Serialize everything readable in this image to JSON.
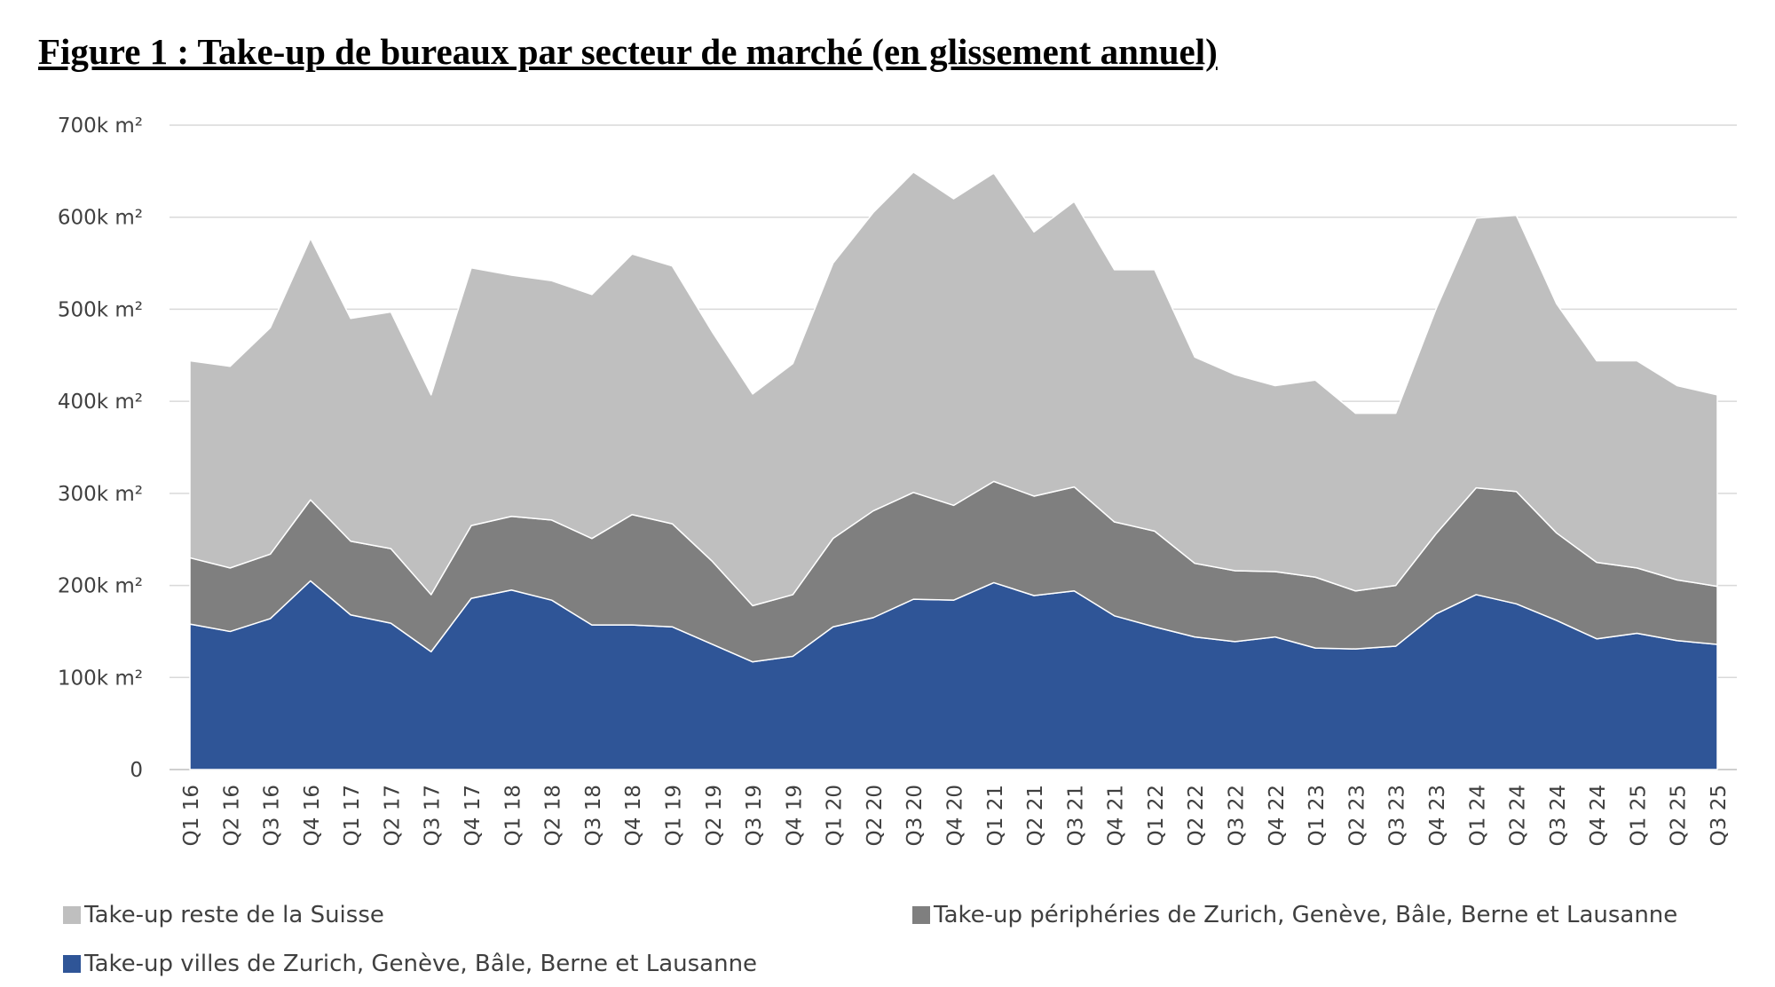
{
  "title": "Figure 1 : Take-up de bureaux par secteur de marché (en glissement annuel)",
  "chart_data": {
    "type": "area",
    "stacked": true,
    "title": "Figure 1 : Take-up de bureaux par secteur de marché (en glissement annuel)",
    "xlabel": "",
    "ylabel": "",
    "ylim": [
      0,
      700
    ],
    "yticks": [
      "0",
      "100k m²",
      "200k m²",
      "300k m²",
      "400k m²",
      "500k m²",
      "600k m²",
      "700k m²"
    ],
    "grid": true,
    "legend_position": "bottom",
    "categories": [
      "Q1 16",
      "Q2 16",
      "Q3 16",
      "Q4 16",
      "Q1 17",
      "Q2 17",
      "Q3 17",
      "Q4 17",
      "Q1 18",
      "Q2 18",
      "Q3 18",
      "Q4 18",
      "Q1 19",
      "Q2 19",
      "Q3 19",
      "Q4 19",
      "Q1 20",
      "Q2 20",
      "Q3 20",
      "Q4 20",
      "Q1 21",
      "Q2 21",
      "Q3 21",
      "Q4 21",
      "Q1 22",
      "Q2 22",
      "Q3 22",
      "Q4 22",
      "Q1 23",
      "Q2 23",
      "Q3 23",
      "Q4 23",
      "Q1 24",
      "Q2 24",
      "Q3 24",
      "Q4 24",
      "Q1 25",
      "Q2 25",
      "Q3 25"
    ],
    "series": [
      {
        "name": "Take-up villes de Zurich, Genève, Bâle, Berne et Lausanne",
        "color": "#2f5597",
        "values": [
          158,
          150,
          164,
          205,
          168,
          159,
          128,
          186,
          195,
          184,
          157,
          157,
          155,
          136,
          117,
          123,
          155,
          165,
          185,
          184,
          203,
          189,
          194,
          167,
          155,
          144,
          139,
          144,
          132,
          131,
          134,
          169,
          190,
          180,
          162,
          142,
          148,
          140,
          136
        ]
      },
      {
        "name": "Take-up périphéries de Zurich, Genève, Bâle, Berne et Lausanne",
        "color": "#7f7f7f",
        "values": [
          72,
          69,
          70,
          88,
          80,
          81,
          62,
          79,
          80,
          87,
          94,
          120,
          112,
          90,
          61,
          67,
          96,
          116,
          116,
          103,
          110,
          108,
          113,
          102,
          104,
          80,
          77,
          71,
          77,
          63,
          66,
          87,
          116,
          122,
          95,
          83,
          71,
          66,
          63
        ]
      },
      {
        "name": "Take-up reste de la Suisse",
        "color": "#bfbfbf",
        "values": [
          214,
          219,
          246,
          284,
          242,
          257,
          217,
          280,
          262,
          260,
          265,
          283,
          280,
          249,
          230,
          251,
          299,
          324,
          348,
          333,
          335,
          287,
          310,
          274,
          284,
          224,
          213,
          202,
          214,
          193,
          187,
          244,
          293,
          300,
          249,
          219,
          225,
          211,
          208
        ]
      }
    ]
  }
}
